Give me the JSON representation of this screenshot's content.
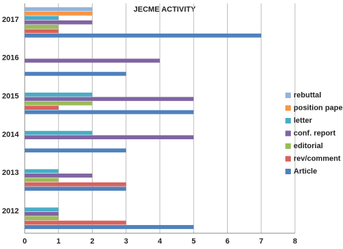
{
  "chart_data": {
    "type": "hbar",
    "title": "JECME ACTIVITY",
    "categories": [
      "2012",
      "2013",
      "2014",
      "2015",
      "2016",
      "2017"
    ],
    "series": [
      {
        "name": "Article",
        "color": "#4f81bd",
        "values": [
          5,
          3,
          3,
          5,
          3,
          7
        ]
      },
      {
        "name": "rev/comment",
        "color": "#d9625c",
        "values": [
          3,
          3,
          0,
          1,
          0,
          1
        ]
      },
      {
        "name": "editorial",
        "color": "#9bbb59",
        "values": [
          1,
          1,
          0,
          2,
          0,
          1
        ]
      },
      {
        "name": "conf. report",
        "color": "#8064a2",
        "values": [
          1,
          2,
          5,
          5,
          4,
          2
        ]
      },
      {
        "name": "letter",
        "color": "#4bacc6",
        "values": [
          1,
          1,
          2,
          2,
          0,
          1
        ]
      },
      {
        "name": "position paper",
        "color": "#f79646",
        "values": [
          0,
          0,
          0,
          0,
          0,
          2
        ]
      },
      {
        "name": "rebuttal",
        "color": "#95b3d7",
        "values": [
          0,
          0,
          0,
          0,
          0,
          2
        ]
      }
    ],
    "xlim": [
      0,
      8
    ],
    "xticks": [
      0,
      1,
      2,
      3,
      4,
      5,
      6,
      7,
      8
    ],
    "grid": true,
    "legend": "right"
  }
}
